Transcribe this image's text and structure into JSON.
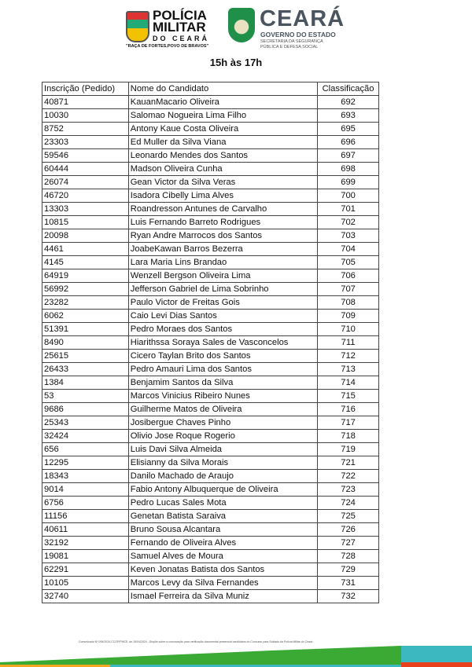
{
  "header": {
    "pm_logo": "POLÍCIA MILITAR",
    "pm_sub": "DO CEARÁ",
    "pm_motto": "\"RAÇA DE FORTES,POVO DE BRAVOS\"",
    "ce_logo": "CEARÁ",
    "ce_gov": "GOVERNO DO ESTADO",
    "ce_sec": "SECRETARIA DA SEGURANÇA PÚBLICA E DEFESA SOCIAL"
  },
  "title": "15h às 17h",
  "table": {
    "columns": [
      "Inscrição (Pedido)",
      "Nome do Candidato",
      "Classificação"
    ],
    "rows": [
      [
        "40871",
        "KauanMacario Oliveira",
        "692"
      ],
      [
        "10030",
        "Salomao Nogueira Lima Filho",
        "693"
      ],
      [
        "8752",
        "Antony Kaue Costa Oliveira",
        "695"
      ],
      [
        "23303",
        "Ed Muller da Silva Viana",
        "696"
      ],
      [
        "59546",
        "Leonardo Mendes dos Santos",
        "697"
      ],
      [
        "60444",
        "Madson Oliveira Cunha",
        "698"
      ],
      [
        "26074",
        "Gean Victor da Silva Veras",
        "699"
      ],
      [
        "46720",
        "Isadora Cibelly Lima Alves",
        "700"
      ],
      [
        "13303",
        "Roandresson Antunes de Carvalho",
        "701"
      ],
      [
        "10815",
        "Luis Fernando Barreto Rodrigues",
        "702"
      ],
      [
        "20098",
        "Ryan Andre Marrocos dos Santos",
        "703"
      ],
      [
        "4461",
        "JoabeKawan Barros Bezerra",
        "704"
      ],
      [
        "4145",
        "Lara Maria Lins Brandao",
        "705"
      ],
      [
        "64919",
        "Wenzell Bergson Oliveira Lima",
        "706"
      ],
      [
        "56992",
        "Jefferson Gabriel de Lima Sobrinho",
        "707"
      ],
      [
        "23282",
        "Paulo Victor de Freitas Gois",
        "708"
      ],
      [
        "6062",
        "Caio Levi Dias Santos",
        "709"
      ],
      [
        "51391",
        "Pedro Moraes dos Santos",
        "710"
      ],
      [
        "8490",
        "Hiarithssa Soraya Sales de Vasconcelos",
        "711"
      ],
      [
        "25615",
        "Cicero Taylan Brito dos Santos",
        "712"
      ],
      [
        "26433",
        "Pedro Amauri Lima dos Santos",
        "713"
      ],
      [
        "1384",
        "Benjamim Santos da Silva",
        "714"
      ],
      [
        "53",
        "Marcos Vinicius Ribeiro Nunes",
        "715"
      ],
      [
        "9686",
        "Guilherme Matos de Oliveira",
        "716"
      ],
      [
        "25343",
        "Josibergue Chaves Pinho",
        "717"
      ],
      [
        "32424",
        "Olivio Jose Roque Rogerio",
        "718"
      ],
      [
        "656",
        "Luis Davi Silva Almeida",
        "719"
      ],
      [
        "12295",
        "Elisianny da Silva Morais",
        "721"
      ],
      [
        "18343",
        "Danilo Machado de Araujo",
        "722"
      ],
      [
        "9014",
        "Fabio Antony Albuquerque de Oliveira",
        "723"
      ],
      [
        "6756",
        "Pedro Lucas Sales Mota",
        "724"
      ],
      [
        "11156",
        "Genetan Batista Saraiva",
        "725"
      ],
      [
        "40611",
        "Bruno Sousa Alcantara",
        "726"
      ],
      [
        "32192",
        "Fernando de Oliveira Alves",
        "727"
      ],
      [
        "19081",
        "Samuel Alves de Moura",
        "728"
      ],
      [
        "62291",
        "Keven Jonatas Batista dos Santos",
        "729"
      ],
      [
        "10105",
        "Marcos Levy da Silva Fernandes",
        "731"
      ],
      [
        "32740",
        "Ismael Ferreira da Silva Muniz",
        "732"
      ]
    ]
  },
  "footer": {
    "text": "Comunicado Nº 006/2024-CCOP/PMCE, de 15/04/2024 - Dispõe sobre a convocação para verificação documental presencial candidatos do Concurso para Soldado da Polícia Militar do Ceará"
  },
  "colors": {
    "green": "#3aaa35",
    "teal": "#3bb8c0",
    "orange": "#f5a623",
    "red": "#e8401c"
  }
}
